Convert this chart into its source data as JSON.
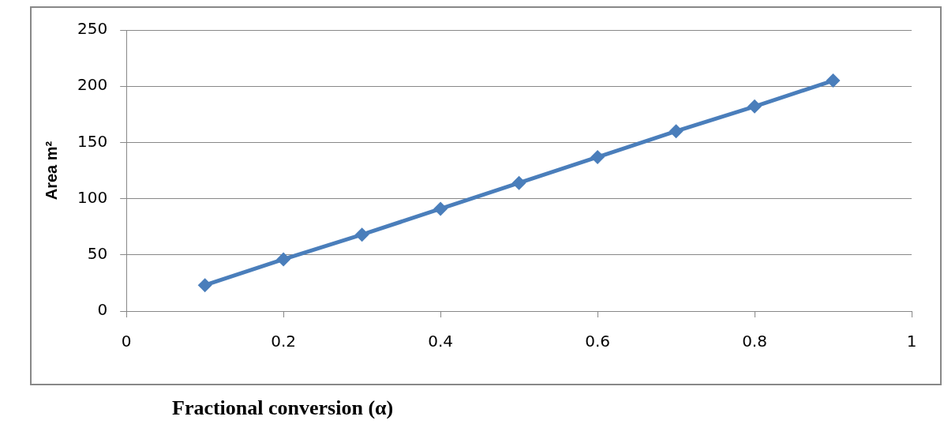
{
  "chart_data": {
    "type": "line",
    "xlabel": "Fractional conversion (α)",
    "ylabel": "Area m²",
    "x": [
      0.1,
      0.2,
      0.3,
      0.4,
      0.5,
      0.6,
      0.7,
      0.8,
      0.9
    ],
    "series": [
      {
        "color": "#4a7ebb",
        "values": [
          23,
          46,
          68,
          91,
          114,
          137,
          160,
          182,
          205
        ]
      }
    ],
    "xlim": [
      0,
      1
    ],
    "xticks": [
      0,
      0.2,
      0.4,
      0.6,
      0.8,
      1
    ],
    "ylim": [
      0,
      250
    ],
    "yticks": [
      0,
      50,
      100,
      150,
      200,
      250
    ],
    "grid": "y",
    "legend": false,
    "marker": "diamond",
    "line_style": "solid"
  }
}
